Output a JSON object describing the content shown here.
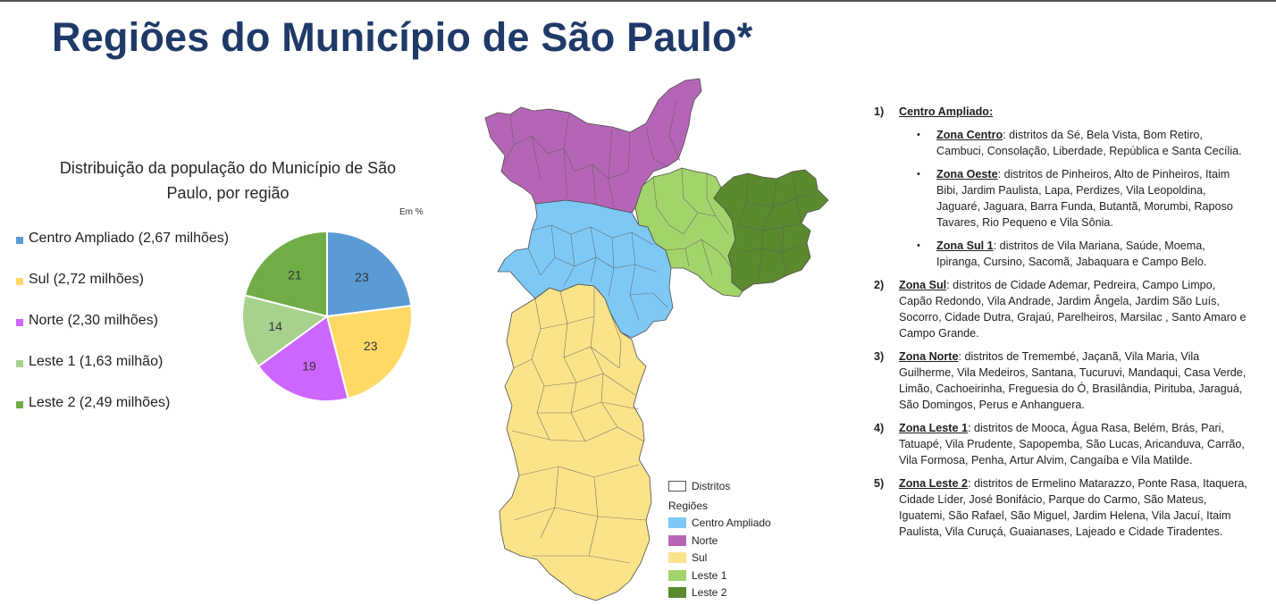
{
  "page": {
    "title": "Regiões do Município de São Paulo*"
  },
  "chart_data": {
    "type": "pie",
    "title": "Distribuição da população do Município de São Paulo, por região",
    "unit_note": "Em %",
    "categories": [
      "Centro Ampliado (2,67 milhões)",
      "Sul (2,72 milhões)",
      "Norte (2,30 milhões)",
      "Leste 1 (1,63 milhão)",
      "Leste 2 (2,49 milhões)"
    ],
    "values": [
      23,
      23,
      19,
      14,
      21
    ],
    "value_labels": [
      "23",
      "23",
      "19",
      "14",
      "21"
    ],
    "colors": [
      "#5b9bd5",
      "#ffd966",
      "#cc66ff",
      "#a9d18e",
      "#70ad47"
    ],
    "legend_position": "left"
  },
  "map": {
    "legend": {
      "districts_label": "Distritos",
      "regions_title": "Regiões",
      "items": [
        {
          "label": "Centro Ampliado",
          "color": "#7ec8f5"
        },
        {
          "label": "Norte",
          "color": "#b565b5"
        },
        {
          "label": "Sul",
          "color": "#fbe38a"
        },
        {
          "label": "Leste 1",
          "color": "#a3d36b"
        },
        {
          "label": "Leste 2",
          "color": "#5b8a2e"
        }
      ]
    }
  },
  "info": {
    "items": [
      {
        "num": "1)",
        "title": "Centro Ampliado:",
        "text": "",
        "subs": [
          {
            "title": "Zona Centro",
            "text": ": distritos da Sé, Bela Vista, Bom Retiro, Cambuci, Consolação, Liberdade, República e Santa Cecília."
          },
          {
            "title": "Zona Oeste",
            "text": ": distritos de Pinheiros, Alto de Pinheiros, Itaim Bibi, Jardim Paulista, Lapa, Perdizes, Vila Leopoldina, Jaguaré, Jaguara, Barra Funda, Butantã, Morumbi, Raposo Tavares, Rio Pequeno e Vila Sônia."
          },
          {
            "title": "Zona Sul 1",
            "text": ": distritos de Vila Mariana, Saúde, Moema, Ipiranga, Cursino, Sacomã, Jabaquara e Campo Belo."
          }
        ]
      },
      {
        "num": "2)",
        "title": "Zona Sul",
        "text": ": distritos de Cidade Ademar, Pedreira, Campo Limpo, Capão Redondo, Vila Andrade, Jardim Ângela, Jardim São Luís, Socorro, Cidade Dutra, Grajaú, Parelheiros, Marsilac , Santo Amaro e Campo Grande."
      },
      {
        "num": "3)",
        "title": "Zona Norte",
        "text": ": distritos de Tremembé, Jaçanã, Vila Maria, Vila Guilherme, Vila Medeiros, Santana, Tucuruvi, Mandaqui, Casa Verde, Limão, Cachoeirinha, Freguesia do Ó, Brasilândia, Pirituba, Jaraguá, São Domingos, Perus e Anhanguera."
      },
      {
        "num": "4)",
        "title": "Zona Leste 1",
        "text": ": distritos de Mooca, Água Rasa, Belém, Brás, Pari, Tatuapé, Vila Prudente, Sapopemba, São Lucas, Aricanduva, Carrão, Vila Formosa, Penha, Artur Alvim, Cangaíba e Vila Matilde."
      },
      {
        "num": "5)",
        "title": "Zona Leste 2",
        "text": ": distritos de Ermelino Matarazzo, Ponte Rasa, Itaquera, Cidade Líder, José Bonifácio, Parque do Carmo, São Mateus, Iguatemi, São Rafael, São Miguel, Jardim Helena, Vila Jacuí, Itaim Paulista, Vila Curuçá, Guaianases, Lajeado e Cidade Tiradentes."
      }
    ]
  }
}
